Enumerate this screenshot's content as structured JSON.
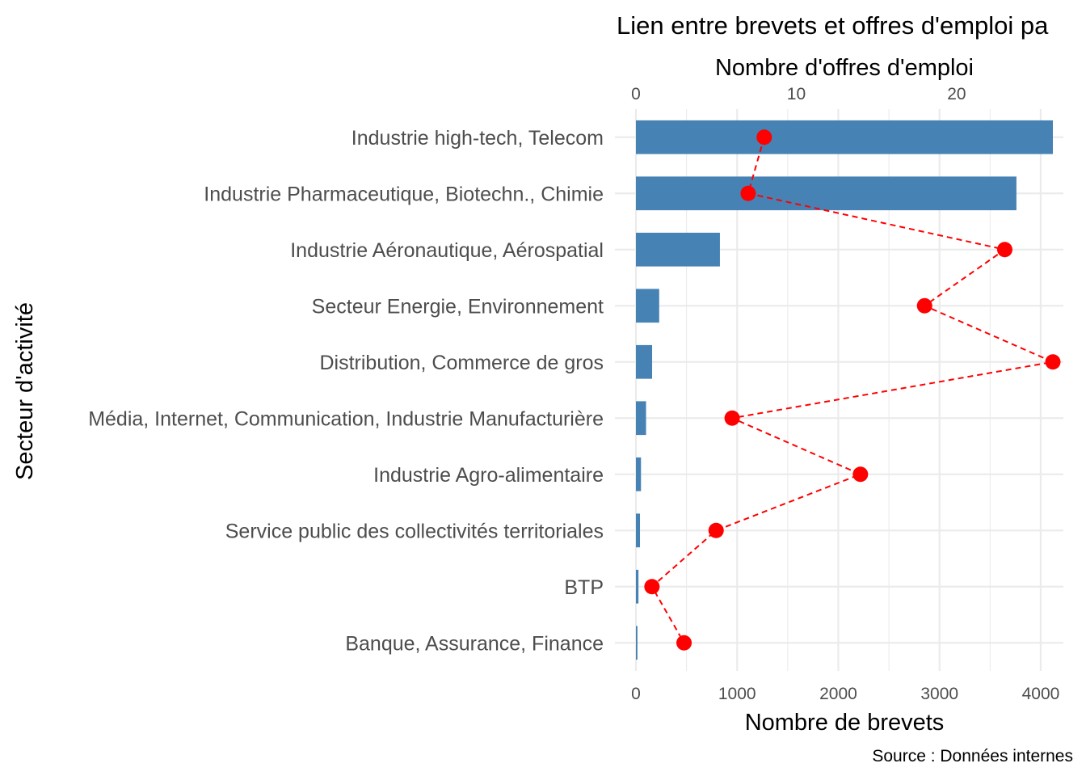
{
  "chart_data": {
    "type": "bar",
    "title": "Lien entre brevets et offres d'emploi pa",
    "xlabel": "Nombre de brevets",
    "x2label": "Nombre d'offres d'emploi",
    "ylabel": "Secteur d'activité",
    "caption": "Source : Données internes",
    "xlim": [
      0,
      4300
    ],
    "x2lim": [
      0,
      26.9
    ],
    "x_ticks": [
      0,
      1000,
      2000,
      3000,
      4000
    ],
    "x2_ticks": [
      0,
      10,
      20
    ],
    "grid": true,
    "categories": [
      "Industrie high-tech, Telecom",
      "Industrie Pharmaceutique, Biotechn., Chimie",
      "Industrie Aéronautique, Aérospatial",
      "Secteur Energie, Environnement",
      "Distribution, Commerce de gros",
      "Média, Internet, Communication, Industrie Manufacturière",
      "Industrie Agro-alimentaire",
      "Service public des collectivités territoriales",
      "BTP",
      "Banque, Assurance, Finance"
    ],
    "series": [
      {
        "values": [
          4120,
          3760,
          830,
          230,
          160,
          100,
          50,
          40,
          25,
          15
        ],
        "color": "#4682b4",
        "axis": "bottom",
        "type": "bar"
      },
      {
        "values": [
          8,
          7,
          23,
          18,
          26,
          6,
          14,
          5,
          1,
          3
        ],
        "color": "#ff0000",
        "axis": "top",
        "type": "line",
        "line_style": "dashed",
        "marker": "point"
      }
    ]
  }
}
